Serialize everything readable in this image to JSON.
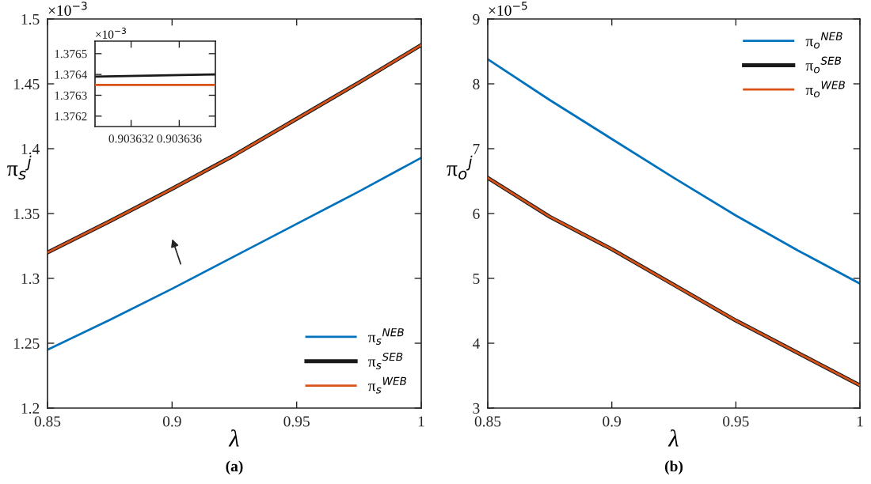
{
  "chart_data": [
    {
      "type": "line",
      "xlabel": "λ",
      "ylabel": "π$_{s}$$^{j}$",
      "x": [
        0.85,
        0.875,
        0.9,
        0.925,
        0.95,
        0.975,
        1
      ],
      "series": [
        {
          "name": "π$_{s}$$^{NEB}$",
          "color": "#0072bd",
          "values": [
            1.245,
            1.268,
            1.292,
            1.317,
            1.342,
            1.367,
            1.393
          ]
        },
        {
          "name": "π$_{s}$$^{SEB}$",
          "color": "#1a1a1a",
          "values": [
            1.32,
            1.344,
            1.369,
            1.395,
            1.423,
            1.451,
            1.48
          ]
        },
        {
          "name": "π$_{s}$$^{WEB}$",
          "color": "#d95319",
          "values": [
            1.32,
            1.344,
            1.369,
            1.395,
            1.423,
            1.451,
            1.48
          ]
        }
      ],
      "xlim": [
        0.85,
        1
      ],
      "xticks": [
        0.85,
        0.9,
        0.95,
        1
      ],
      "ylim": [
        1.2,
        1.5
      ],
      "yticks": [
        1.2,
        1.25,
        1.3,
        1.35,
        1.4,
        1.45,
        1.5
      ],
      "legend": "bottom right",
      "grid": false,
      "annotations": [
        "×10$^{−3}$",
        "(a)"
      ]
    },
    {
      "type": "line",
      "x": [
        0.903629,
        0.903639
      ],
      "series": [
        {
          "color": "#1a1a1a",
          "values": [
            1.37639,
            1.3764
          ]
        },
        {
          "color": "#d95319",
          "values": [
            1.37635,
            1.37635
          ]
        }
      ],
      "xlim": [
        0.903629,
        0.903639
      ],
      "xticks": [
        0.903632,
        0.903636
      ],
      "ylim": [
        1.37615,
        1.37656
      ],
      "yticks": [
        1.3762,
        1.3763,
        1.3764,
        1.3765
      ],
      "grid": false,
      "annotations": [
        "×10$^{−3}$"
      ]
    },
    {
      "type": "line",
      "xlabel": "λ",
      "ylabel": "π$_{o}$$^{j}$",
      "x": [
        0.85,
        0.875,
        0.9,
        0.925,
        0.95,
        0.975,
        1
      ],
      "series": [
        {
          "name": "π$_{o}$$^{NEB}$",
          "color": "#0072bd",
          "values": [
            8.38,
            7.75,
            7.15,
            6.55,
            5.97,
            5.43,
            4.92
          ]
        },
        {
          "name": "π$_{o}$$^{SEB}$",
          "color": "#1a1a1a",
          "values": [
            6.55,
            5.95,
            5.45,
            4.9,
            4.35,
            3.85,
            3.35
          ]
        },
        {
          "name": "π$_{o}$$^{WEB}$",
          "color": "#d95319",
          "values": [
            6.55,
            5.95,
            5.45,
            4.9,
            4.35,
            3.85,
            3.35
          ]
        }
      ],
      "xlim": [
        0.85,
        1
      ],
      "xticks": [
        0.85,
        0.9,
        0.95,
        1
      ],
      "ylim": [
        3,
        9
      ],
      "yticks": [
        3,
        4,
        5,
        6,
        7,
        8,
        9
      ],
      "legend": "top right",
      "grid": false,
      "annotations": [
        "×10$^{−5}$",
        "(b)"
      ]
    }
  ]
}
